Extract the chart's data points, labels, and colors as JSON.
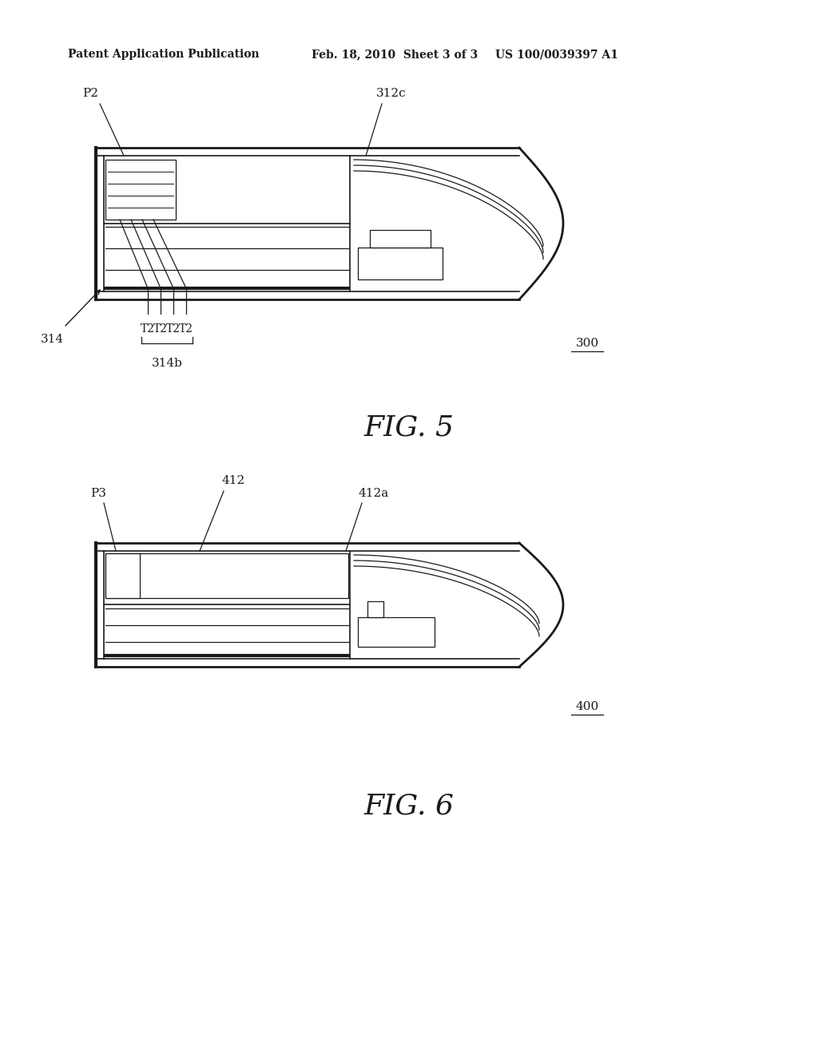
{
  "bg_color": "#ffffff",
  "line_color": "#1a1a1a",
  "header_left": "Patent Application Publication",
  "header_center": "Feb. 18, 2010  Sheet 3 of 3",
  "header_right": "US 100/0039397 A1",
  "fig5_label": "FIG. 5",
  "fig6_label": "FIG. 6",
  "fig5_ref": "300",
  "fig6_ref": "400"
}
